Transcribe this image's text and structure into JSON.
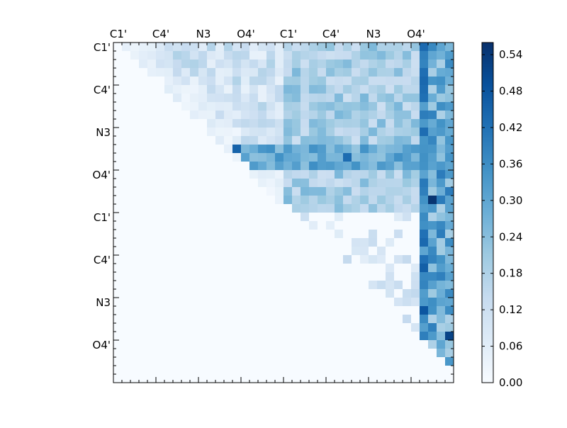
{
  "chart_data": {
    "type": "heatmap",
    "title": "",
    "xlabel": "",
    "ylabel": "",
    "x_tick_labels": [
      "C1'",
      "C4'",
      "N3",
      "O4'",
      "C1'",
      "C4'",
      "N3",
      "O4'"
    ],
    "y_tick_labels": [
      "C1'",
      "C4'",
      "N3",
      "O4'",
      "C1'",
      "C4'",
      "N3",
      "O4'"
    ],
    "matrix_size": 40,
    "tick_stride": 5,
    "colorbar": {
      "ticks": [
        "0.00",
        "0.06",
        "0.12",
        "0.18",
        "0.24",
        "0.30",
        "0.36",
        "0.42",
        "0.48",
        "0.54"
      ],
      "range": [
        0,
        0.56
      ],
      "colormap": [
        "#f7fbff",
        "#deebf7",
        "#c6dbef",
        "#9ecae1",
        "#6baed6",
        "#4292c6",
        "#2171b5",
        "#08519c",
        "#08306b"
      ]
    },
    "upper_triangle_only": true,
    "notable_cells": [
      {
        "row": 12,
        "col": 14,
        "value": 0.45
      },
      {
        "row": 13,
        "col": 27,
        "value": 0.43
      },
      {
        "row": 18,
        "col": 37,
        "value": 0.55
      },
      {
        "row": 34,
        "col": 39,
        "value": 0.52
      },
      {
        "row": 31,
        "col": 36,
        "value": 0.48
      },
      {
        "row": 26,
        "col": 36,
        "value": 0.46
      }
    ]
  }
}
